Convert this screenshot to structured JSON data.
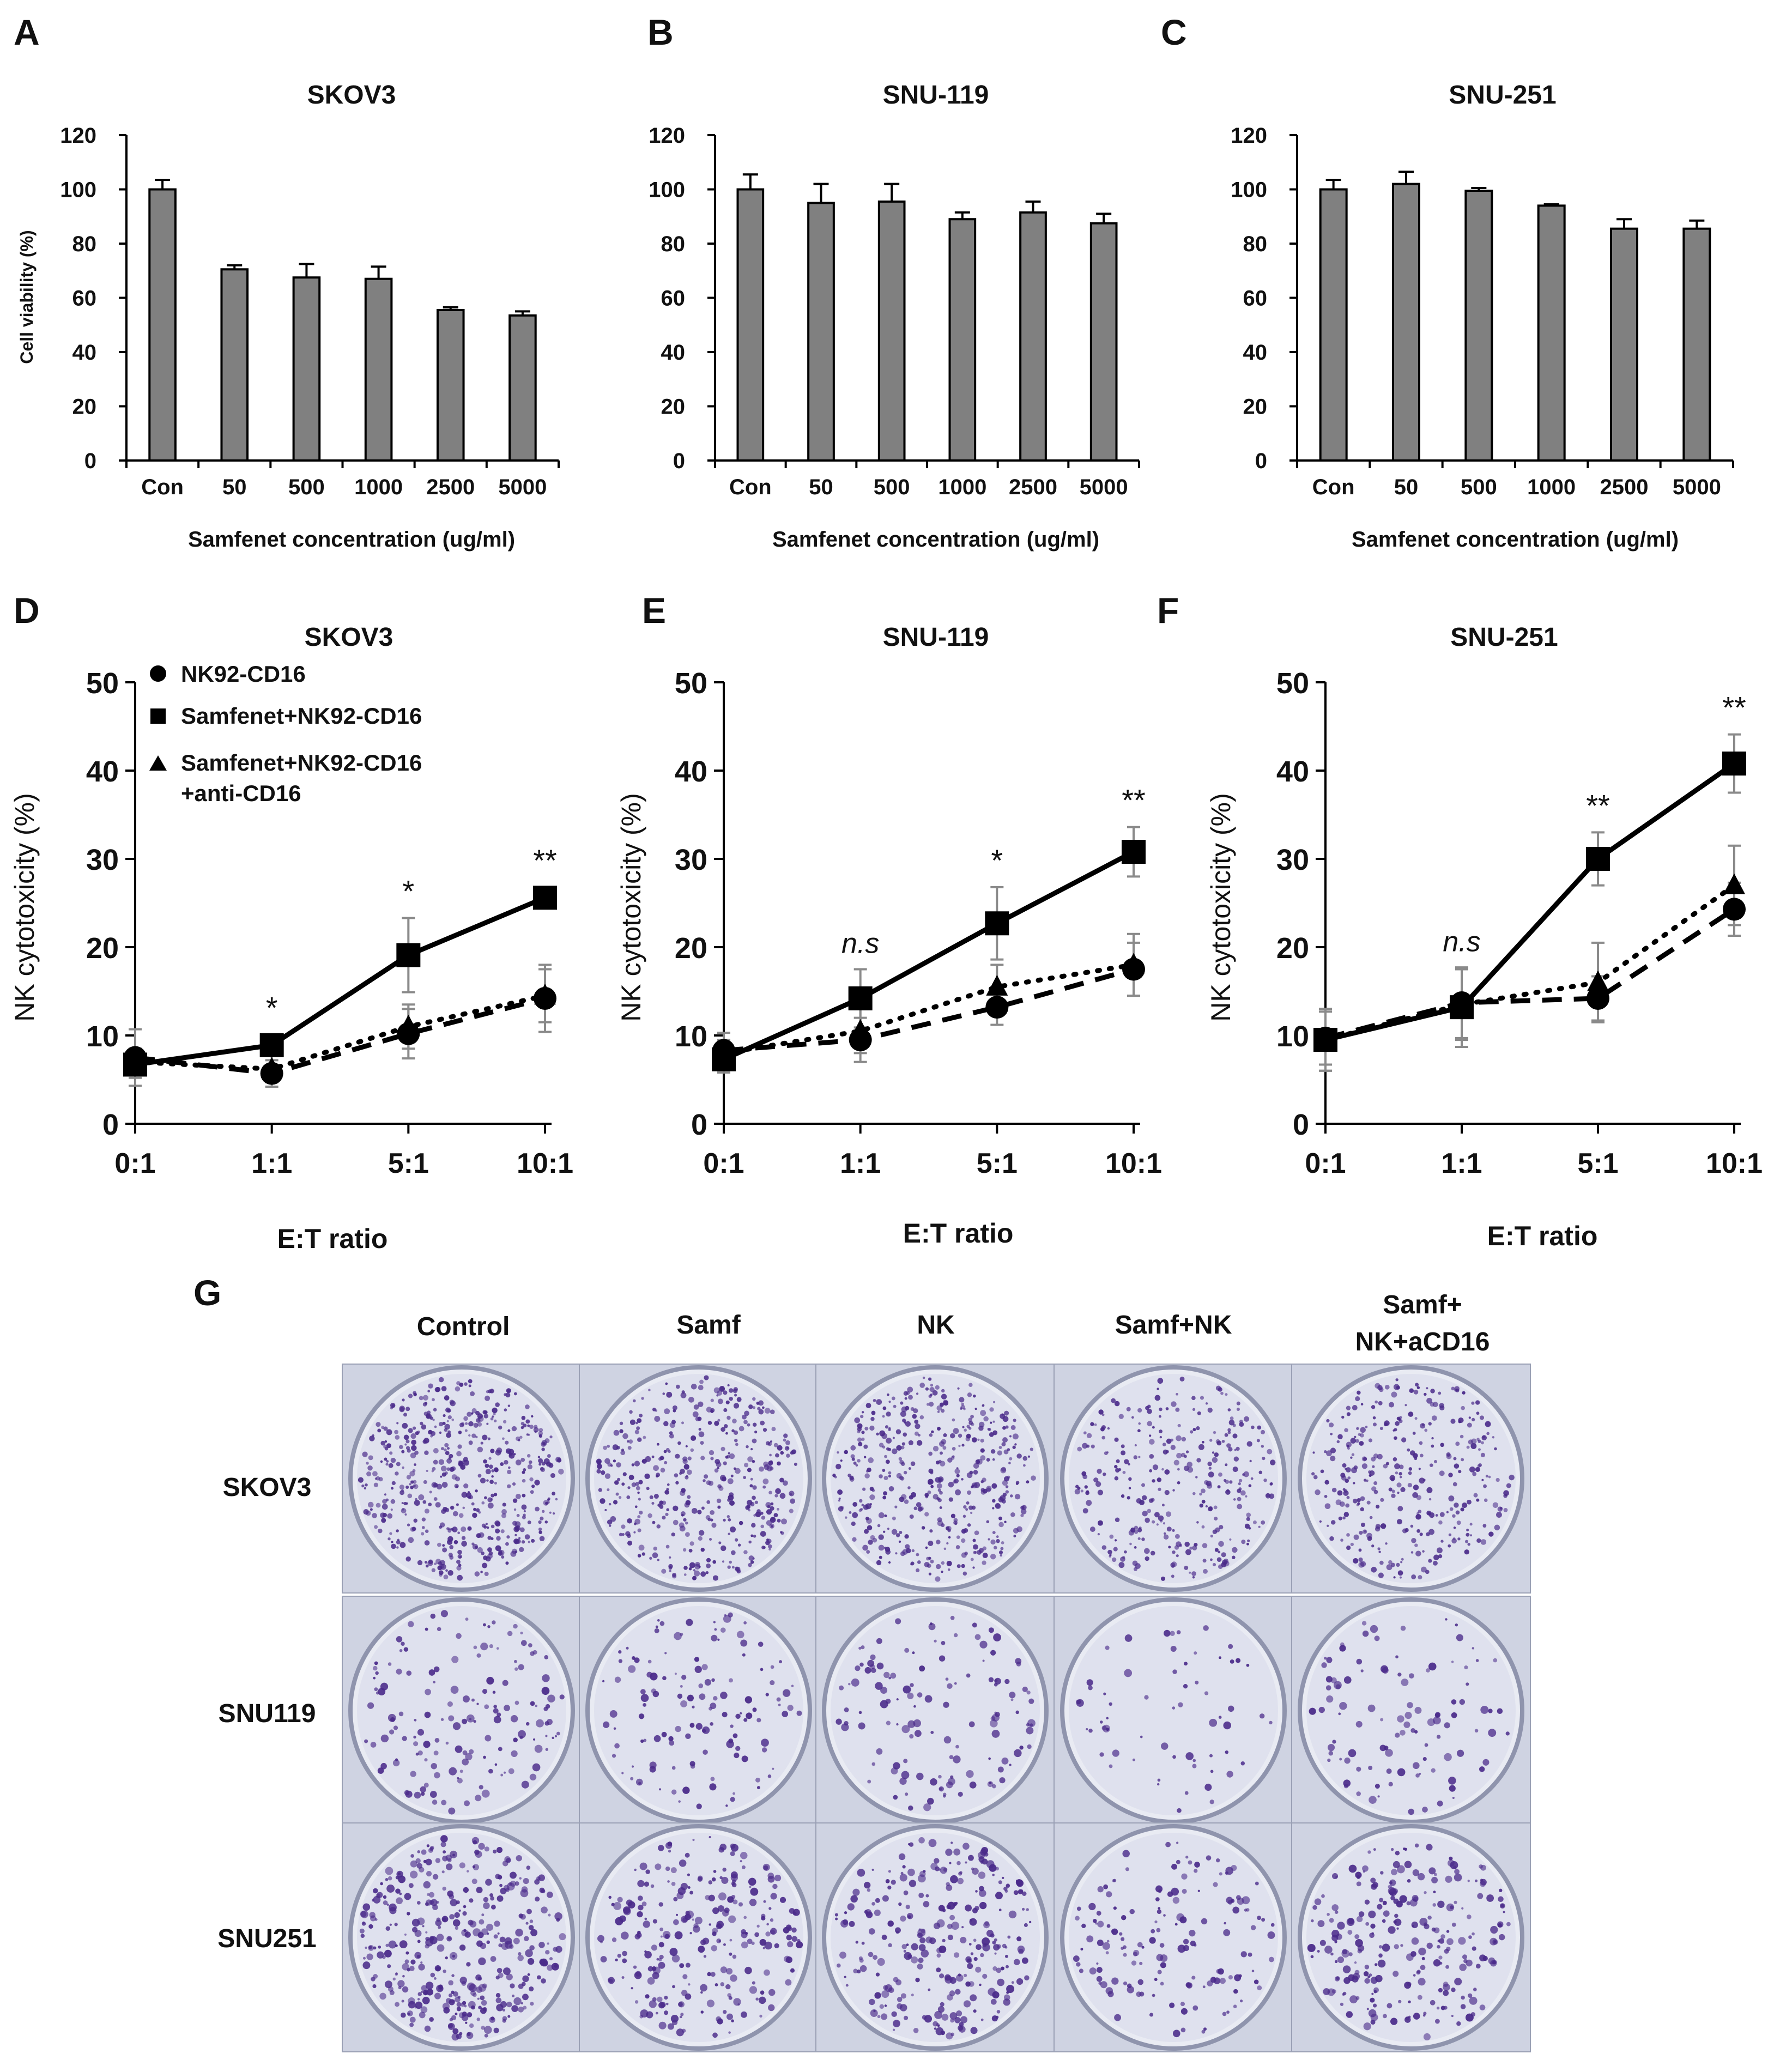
{
  "chart_data": [
    {
      "panel": "A",
      "type": "bar",
      "title": "SKOV3",
      "categories": [
        "Con",
        "50",
        "500",
        "1000",
        "2500",
        "5000"
      ],
      "values": [
        100,
        70.5,
        67.5,
        67,
        55.5,
        53.5
      ],
      "errors": [
        3.5,
        1.5,
        5,
        4.5,
        1,
        1.5
      ],
      "ylabel": "Cell viability (%)",
      "xlabel": "Samfenet concentration (ug/ml)",
      "ylim": [
        0,
        120
      ],
      "yticks": [
        0,
        20,
        40,
        60,
        80,
        100,
        120
      ],
      "bar_color": "#808080"
    },
    {
      "panel": "B",
      "type": "bar",
      "title": "SNU-119",
      "categories": [
        "Con",
        "50",
        "500",
        "1000",
        "2500",
        "5000"
      ],
      "values": [
        100,
        95,
        95.5,
        89,
        91.5,
        87.5
      ],
      "errors": [
        5.5,
        7,
        6.5,
        2.5,
        4,
        3.5
      ],
      "ylabel": "",
      "xlabel": "Samfenet concentration (ug/ml)",
      "ylim": [
        0,
        120
      ],
      "yticks": [
        0,
        20,
        40,
        60,
        80,
        100,
        120
      ],
      "bar_color": "#808080"
    },
    {
      "panel": "C",
      "type": "bar",
      "title": "SNU-251",
      "categories": [
        "Con",
        "50",
        "500",
        "1000",
        "2500",
        "5000"
      ],
      "values": [
        100,
        102,
        99.5,
        94,
        85.5,
        85.5
      ],
      "errors": [
        3.5,
        4.5,
        1,
        0.5,
        3.5,
        3
      ],
      "ylabel": "",
      "xlabel": "Samfenet concentration (ug/ml)",
      "ylim": [
        0,
        120
      ],
      "yticks": [
        0,
        20,
        40,
        60,
        80,
        100,
        120
      ],
      "bar_color": "#808080"
    },
    {
      "panel": "D",
      "type": "line",
      "title": "SKOV3",
      "categories": [
        "0:1",
        "1:1",
        "5:1",
        "10:1"
      ],
      "series": [
        {
          "name": "NK92-CD16",
          "marker": "circle",
          "dash": "dash",
          "values": [
            7.5,
            5.7,
            10.2,
            14.2
          ],
          "errors": [
            3.2,
            1.5,
            2.8,
            3.8
          ]
        },
        {
          "name": "Samfenet+NK92-CD16",
          "marker": "square",
          "dash": "solid",
          "values": [
            6.7,
            8.9,
            19.1,
            25.6
          ],
          "errors": [
            1.5,
            1.2,
            4.2,
            1.2
          ]
        },
        {
          "name": "Samfenet+NK92-CD16\n+anti-CD16",
          "marker": "triangle",
          "dash": "dot",
          "values": [
            7,
            6.2,
            11,
            14.5
          ],
          "errors": [
            1.5,
            1.5,
            2.5,
            3
          ]
        }
      ],
      "significance": [
        "",
        "*",
        "*",
        "**"
      ],
      "ylabel": "NK cytotoxicity (%)",
      "xlabel": "E:T ratio",
      "ylim": [
        0,
        50
      ],
      "yticks": [
        0,
        10,
        20,
        30,
        40,
        50
      ]
    },
    {
      "panel": "E",
      "type": "line",
      "title": "SNU-119",
      "categories": [
        "0:1",
        "1:1",
        "5:1",
        "10:1"
      ],
      "series": [
        {
          "name": "NK92-CD16",
          "marker": "circle",
          "dash": "dash",
          "values": [
            8.3,
            9.5,
            13.2,
            17.5
          ],
          "errors": [
            2,
            2.5,
            2,
            3
          ]
        },
        {
          "name": "Samfenet+NK92-CD16",
          "marker": "square",
          "dash": "solid",
          "values": [
            7.3,
            14.2,
            22.7,
            30.8
          ],
          "errors": [
            1.5,
            3.3,
            4.1,
            2.8
          ]
        },
        {
          "name": "Samfenet+NK92-CD16\n+anti-CD16",
          "marker": "triangle",
          "dash": "dot",
          "values": [
            8,
            10.5,
            15.5,
            18
          ],
          "errors": [
            1.5,
            2.5,
            2.5,
            3.5
          ]
        }
      ],
      "significance": [
        "",
        "n.s",
        "*",
        "**"
      ],
      "ylabel": "NK cytotoxicity (%)",
      "xlabel": "E:T ratio",
      "ylim": [
        0,
        50
      ],
      "yticks": [
        0,
        10,
        20,
        30,
        40,
        50
      ]
    },
    {
      "panel": "F",
      "type": "line",
      "title": "SNU-251",
      "categories": [
        "0:1",
        "1:1",
        "5:1",
        "10:1"
      ],
      "series": [
        {
          "name": "NK92-CD16",
          "marker": "circle",
          "dash": "dash",
          "values": [
            9.7,
            13.7,
            14.2,
            24.3
          ],
          "errors": [
            3,
            4,
            2.5,
            3
          ]
        },
        {
          "name": "Samfenet+NK92-CD16",
          "marker": "square",
          "dash": "solid",
          "values": [
            9.5,
            13.2,
            30,
            40.8
          ],
          "errors": [
            3.5,
            4.5,
            3,
            3.3
          ]
        },
        {
          "name": "Samfenet+NK92-CD16\n+anti-CD16",
          "marker": "triangle",
          "dash": "dot",
          "values": [
            9.5,
            13.5,
            16,
            27
          ],
          "errors": [
            3.5,
            4,
            4.5,
            4.5
          ]
        }
      ],
      "significance": [
        "",
        "n.s",
        "**",
        "**"
      ],
      "ylabel": "NK cytotoxicity (%)",
      "xlabel": "E:T ratio",
      "ylim": [
        0,
        50
      ],
      "yticks": [
        0,
        10,
        20,
        30,
        40,
        50
      ]
    }
  ],
  "panel_letters": [
    "A",
    "B",
    "C",
    "D",
    "E",
    "F",
    "G"
  ],
  "legend": [
    {
      "label": "NK92-CD16",
      "marker": "circle"
    },
    {
      "label": "Samfenet+NK92-CD16",
      "marker": "square"
    },
    {
      "label_line1": "Samfenet+NK92-CD16",
      "label_line2": "+anti-CD16",
      "marker": "triangle"
    }
  ],
  "panel_g": {
    "column_headers": [
      "Control",
      "Samf",
      "NK",
      "Samf+NK"
    ],
    "last_header_line1": "Samf+",
    "last_header_line2": "NK+aCD16",
    "row_labels": [
      "SKOV3",
      "SNU119",
      "SNU251"
    ],
    "colony_density": [
      [
        1.0,
        0.8,
        0.85,
        0.6,
        0.65
      ],
      [
        0.3,
        0.25,
        0.25,
        0.12,
        0.2
      ],
      [
        0.75,
        0.5,
        0.55,
        0.3,
        0.5
      ]
    ],
    "stain_color": "#4a2a8a",
    "dish_color": "#dfe1ee"
  }
}
